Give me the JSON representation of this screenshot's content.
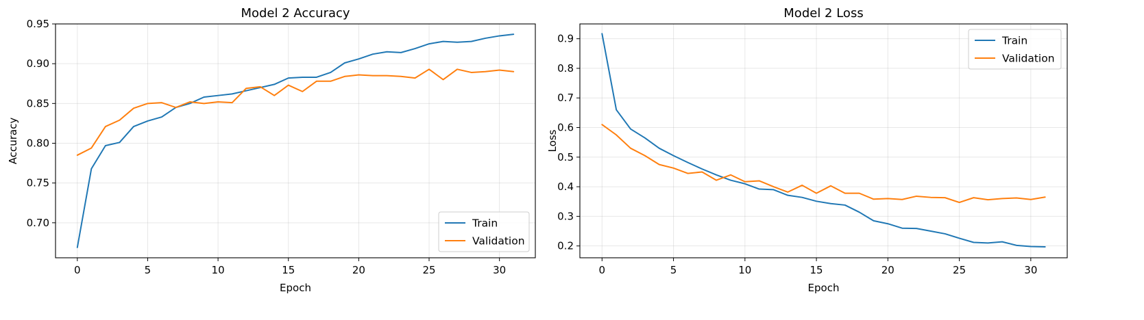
{
  "chart_data": [
    {
      "type": "line",
      "title": "Model 2 Accuracy",
      "xlabel": "Epoch",
      "ylabel": "Accuracy",
      "xlim": [
        -1.55,
        32.55
      ],
      "ylim": [
        0.656,
        0.95
      ],
      "xticks": [
        0,
        5,
        10,
        15,
        20,
        25,
        30
      ],
      "yticks": [
        0.7,
        0.75,
        0.8,
        0.85,
        0.9,
        0.95
      ],
      "ytick_labels": [
        "0.70",
        "0.75",
        "0.80",
        "0.85",
        "0.90",
        "0.95"
      ],
      "grid": true,
      "legend_position": "lower-right",
      "x": [
        0,
        1,
        2,
        3,
        4,
        5,
        6,
        7,
        8,
        9,
        10,
        11,
        12,
        13,
        14,
        15,
        16,
        17,
        18,
        19,
        20,
        21,
        22,
        23,
        24,
        25,
        26,
        27,
        28,
        29,
        30,
        31
      ],
      "series": [
        {
          "name": "Train",
          "color": "#1f77b4",
          "values": [
            0.669,
            0.768,
            0.797,
            0.801,
            0.821,
            0.828,
            0.833,
            0.845,
            0.85,
            0.858,
            0.86,
            0.862,
            0.866,
            0.87,
            0.874,
            0.882,
            0.883,
            0.883,
            0.889,
            0.901,
            0.906,
            0.912,
            0.915,
            0.914,
            0.919,
            0.925,
            0.928,
            0.927,
            0.928,
            0.932,
            0.935,
            0.937
          ]
        },
        {
          "name": "Validation",
          "color": "#ff7f0e",
          "values": [
            0.785,
            0.794,
            0.821,
            0.829,
            0.844,
            0.85,
            0.851,
            0.845,
            0.852,
            0.85,
            0.852,
            0.851,
            0.869,
            0.871,
            0.86,
            0.873,
            0.865,
            0.878,
            0.878,
            0.884,
            0.886,
            0.885,
            0.885,
            0.884,
            0.882,
            0.893,
            0.88,
            0.893,
            0.889,
            0.89,
            0.892,
            0.89
          ]
        }
      ]
    },
    {
      "type": "line",
      "title": "Model 2 Loss",
      "xlabel": "Epoch",
      "ylabel": "Loss",
      "xlim": [
        -1.55,
        32.55
      ],
      "ylim": [
        0.16,
        0.95
      ],
      "xticks": [
        0,
        5,
        10,
        15,
        20,
        25,
        30
      ],
      "yticks": [
        0.2,
        0.3,
        0.4,
        0.5,
        0.6,
        0.7,
        0.8,
        0.9
      ],
      "ytick_labels": [
        "0.2",
        "0.3",
        "0.4",
        "0.5",
        "0.6",
        "0.7",
        "0.8",
        "0.9"
      ],
      "grid": true,
      "legend_position": "upper-right",
      "x": [
        0,
        1,
        2,
        3,
        4,
        5,
        6,
        7,
        8,
        9,
        10,
        11,
        12,
        13,
        14,
        15,
        16,
        17,
        18,
        19,
        20,
        21,
        22,
        23,
        24,
        25,
        26,
        27,
        28,
        29,
        30,
        31
      ],
      "series": [
        {
          "name": "Train",
          "color": "#1f77b4",
          "values": [
            0.917,
            0.66,
            0.595,
            0.565,
            0.53,
            0.505,
            0.482,
            0.46,
            0.44,
            0.422,
            0.41,
            0.392,
            0.39,
            0.371,
            0.364,
            0.351,
            0.343,
            0.338,
            0.314,
            0.285,
            0.275,
            0.26,
            0.259,
            0.25,
            0.241,
            0.226,
            0.212,
            0.21,
            0.214,
            0.202,
            0.198,
            0.197
          ]
        },
        {
          "name": "Validation",
          "color": "#ff7f0e",
          "values": [
            0.61,
            0.575,
            0.53,
            0.505,
            0.475,
            0.463,
            0.445,
            0.45,
            0.422,
            0.44,
            0.417,
            0.42,
            0.4,
            0.382,
            0.405,
            0.378,
            0.403,
            0.378,
            0.378,
            0.358,
            0.36,
            0.357,
            0.368,
            0.364,
            0.363,
            0.347,
            0.363,
            0.356,
            0.36,
            0.362,
            0.357,
            0.365
          ]
        }
      ]
    }
  ]
}
